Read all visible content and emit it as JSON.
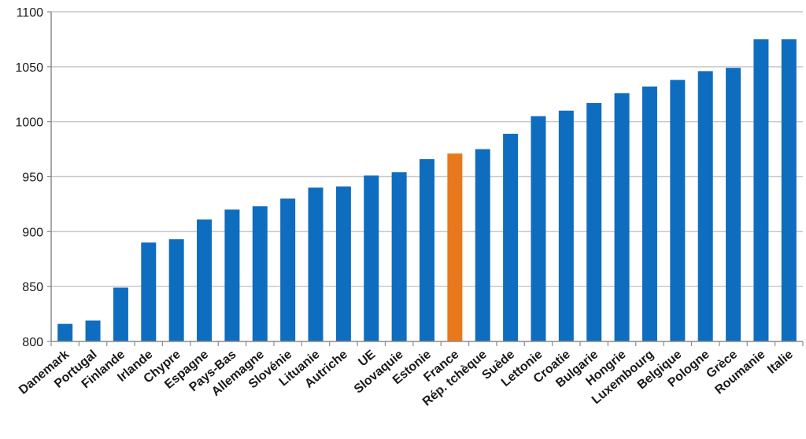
{
  "chart_data": {
    "type": "bar",
    "categories": [
      "Danemark",
      "Portugal",
      "Finlande",
      "Irlande",
      "Chypre",
      "Espagne",
      "Pays-Bas",
      "Allemagne",
      "Slovénie",
      "Lituanie",
      "Autriche",
      "UE",
      "Slovaquie",
      "Estonie",
      "France",
      "Rép. tchèque",
      "Suède",
      "Lettonie",
      "Croatie",
      "Bulgarie",
      "Hongrie",
      "Luxembourg",
      "Belgique",
      "Pologne",
      "Grèce",
      "Roumanie",
      "Italie"
    ],
    "values": [
      816,
      819,
      849,
      890,
      893,
      911,
      920,
      923,
      930,
      940,
      941,
      951,
      954,
      966,
      971,
      975,
      989,
      1005,
      1010,
      1017,
      1026,
      1032,
      1038,
      1046,
      1049,
      1075,
      1075
    ],
    "highlight": "France",
    "ylim": [
      800,
      1100
    ],
    "yticks": [
      800,
      850,
      900,
      950,
      1000,
      1050,
      1100
    ],
    "grid": true,
    "colors": {
      "bar": "#0f6dbf",
      "highlight": "#e8781c",
      "grid": "#c9c9c9",
      "axis": "#8c8c8c"
    }
  }
}
